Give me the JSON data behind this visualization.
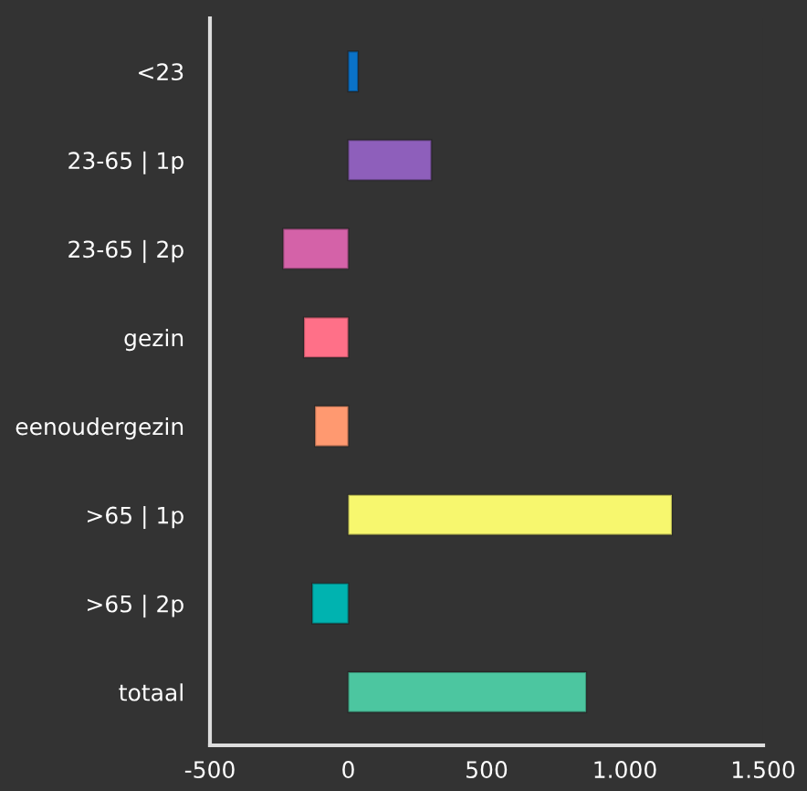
{
  "chart_data": {
    "type": "bar",
    "orientation": "horizontal",
    "categories": [
      "<23",
      "23-65 | 1p",
      "23-65 | 2p",
      "gezin",
      "eenoudergezin",
      ">65 | 1p",
      ">65 | 2p",
      "totaal"
    ],
    "values": [
      35,
      300,
      -235,
      -160,
      -120,
      1170,
      -130,
      860
    ],
    "colors": [
      "#0a72c8",
      "#8e5fbb",
      "#d462a8",
      "#ff7088",
      "#ff9970",
      "#f7f76e",
      "#00b3b0",
      "#4cc6a0"
    ],
    "xlim": [
      -500,
      1500
    ],
    "xticks": [
      {
        "value": -500,
        "label": "-500"
      },
      0,
      500,
      {
        "value": 1000,
        "label": "1.000"
      },
      {
        "value": 1500,
        "label": "1.500"
      }
    ],
    "grid": false
  }
}
